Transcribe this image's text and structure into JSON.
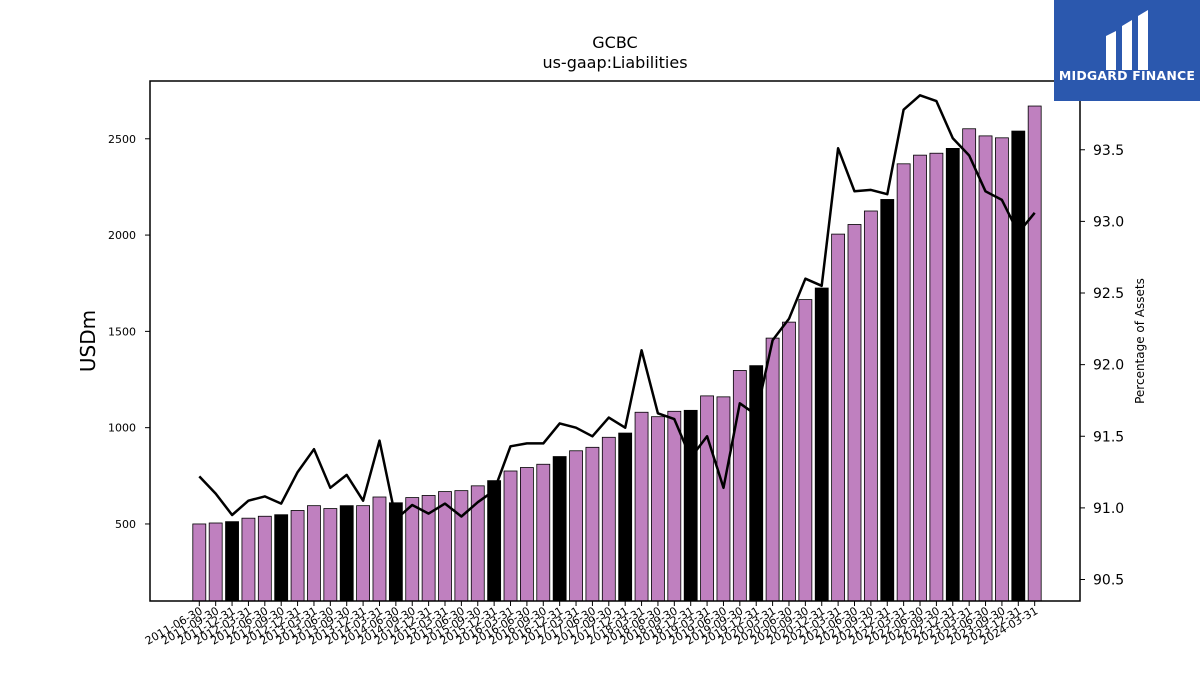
{
  "brand": {
    "name": "MIDGARD FINANCE",
    "bg_color": "#2b58ae"
  },
  "chart_data": {
    "type": "bar",
    "title": "GCBC",
    "subtitle": "us-gaap:Liabilities",
    "ylabel": "USDm",
    "y2label": "Percentage of Assets",
    "ylim": [
      100,
      2800
    ],
    "y2lim": [
      90.35,
      93.98
    ],
    "yticks": [
      500,
      1000,
      1500,
      2000,
      2500
    ],
    "y2ticks": [
      90.5,
      91.0,
      91.5,
      92.0,
      92.5,
      93.0,
      93.5
    ],
    "bar_color": "#bf80bf",
    "highlight_color": "#000000",
    "categories": [
      "2011-06-30",
      "2011-09-30",
      "2011-12-31",
      "2012-03-31",
      "2012-06-30",
      "2012-09-30",
      "2012-12-31",
      "2013-03-31",
      "2013-06-30",
      "2013-09-30",
      "2013-12-31",
      "2014-03-31",
      "2014-06-30",
      "2014-09-30",
      "2014-12-31",
      "2015-03-31",
      "2015-06-30",
      "2015-09-30",
      "2015-12-31",
      "2016-03-31",
      "2016-06-30",
      "2016-09-30",
      "2016-12-31",
      "2017-03-31",
      "2017-06-30",
      "2017-09-30",
      "2017-12-31",
      "2018-03-31",
      "2018-06-30",
      "2018-09-30",
      "2018-12-31",
      "2019-03-31",
      "2019-06-30",
      "2019-09-30",
      "2019-12-31",
      "2020-03-31",
      "2020-06-30",
      "2020-09-30",
      "2020-12-31",
      "2021-03-31",
      "2021-06-30",
      "2021-09-30",
      "2021-12-31",
      "2022-03-31",
      "2022-06-30",
      "2022-09-30",
      "2022-12-31",
      "2023-03-31",
      "2023-06-30",
      "2023-09-30",
      "2023-12-31",
      "2024-03-31"
    ],
    "series": [
      {
        "type": "bar",
        "values": [
          500,
          505,
          512,
          530,
          540,
          548,
          570,
          595,
          580,
          595,
          595,
          640,
          610,
          637,
          648,
          668,
          673,
          698,
          725,
          775,
          793,
          810,
          850,
          880,
          898,
          950,
          972,
          1080,
          1057,
          1085,
          1090,
          1165,
          1160,
          1297,
          1322,
          1465,
          1548,
          1665,
          1725,
          2005,
          2055,
          2125,
          2185,
          2370,
          2415,
          2425,
          2450,
          2552,
          2515,
          2505,
          2540,
          2670
        ]
      },
      {
        "type": "line",
        "axis": "y2",
        "values": [
          91.22,
          91.1,
          90.95,
          91.05,
          91.08,
          91.03,
          91.25,
          91.41,
          91.14,
          91.23,
          91.05,
          91.47,
          90.92,
          91.02,
          90.96,
          91.03,
          90.94,
          91.04,
          91.12,
          91.43,
          91.45,
          91.45,
          91.59,
          91.56,
          91.5,
          91.63,
          91.56,
          92.1,
          91.66,
          91.62,
          91.35,
          91.5,
          91.14,
          91.73,
          91.65,
          92.17,
          92.32,
          92.6,
          92.55,
          93.51,
          93.21,
          93.22,
          93.19,
          93.78,
          93.88,
          93.84,
          93.58,
          93.46,
          93.21,
          93.15,
          92.92,
          93.06
        ]
      }
    ],
    "highlight_indices": [
      2,
      5,
      9,
      12,
      18,
      22,
      26,
      30,
      34,
      38,
      42,
      46,
      50
    ]
  }
}
